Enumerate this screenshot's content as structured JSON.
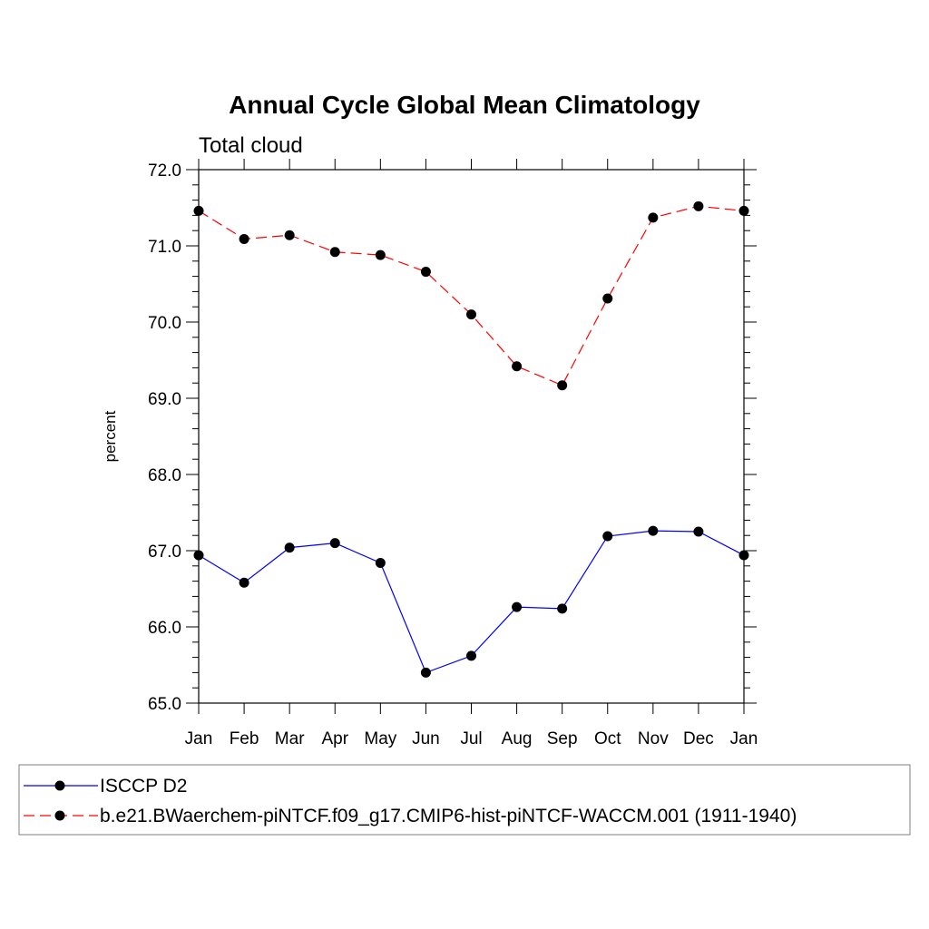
{
  "chart_data": {
    "type": "line",
    "title": "Annual Cycle Global Mean Climatology",
    "subtitle": "Total cloud",
    "xlabel": "",
    "ylabel": "percent",
    "categories": [
      "Jan",
      "Feb",
      "Mar",
      "Apr",
      "May",
      "Jun",
      "Jul",
      "Aug",
      "Sep",
      "Oct",
      "Nov",
      "Dec",
      "Jan"
    ],
    "ylim": [
      65.0,
      72.0
    ],
    "yticks": [
      "65.0",
      "66.0",
      "67.0",
      "68.0",
      "69.0",
      "70.0",
      "71.0",
      "72.0"
    ],
    "grid": false,
    "legend_position": "bottom",
    "series": [
      {
        "name": "ISCCP D2",
        "color": "#0000ff",
        "style": "solid",
        "marker": "circle",
        "values": [
          66.94,
          66.58,
          67.04,
          67.1,
          66.84,
          65.4,
          65.62,
          66.26,
          66.24,
          67.19,
          67.26,
          67.25,
          66.94
        ]
      },
      {
        "name": "b.e21.BWaerchem-piNTCF.f09_g17.CMIP6-hist-piNTCF-WACCM.001 (1911-1940)",
        "color": "#ff0000",
        "style": "dashed",
        "marker": "circle",
        "values": [
          71.46,
          71.09,
          71.14,
          70.92,
          70.88,
          70.66,
          70.1,
          69.42,
          69.17,
          70.31,
          71.37,
          71.52,
          71.46
        ]
      }
    ]
  }
}
